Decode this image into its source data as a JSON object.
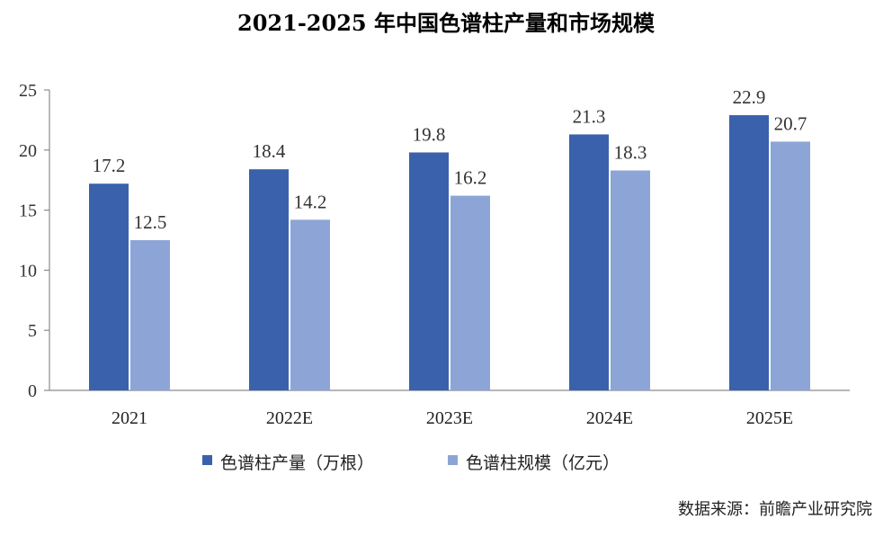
{
  "chart_data": {
    "type": "bar",
    "title": "2021-2025 年中国色谱柱产量和市场规模",
    "categories": [
      "2021",
      "2022E",
      "2023E",
      "2024E",
      "2025E"
    ],
    "series": [
      {
        "name": "色谱柱产量（万根）",
        "values": [
          17.2,
          18.4,
          19.8,
          21.3,
          22.9
        ],
        "color": "#3a61ab"
      },
      {
        "name": "色谱柱规模（亿元）",
        "values": [
          12.5,
          14.2,
          16.2,
          18.3,
          20.7
        ],
        "color": "#8da5d6"
      }
    ],
    "data_labels": [
      [
        "17.2",
        "18.4",
        "19.8",
        "21.3",
        "22.9"
      ],
      [
        "12.5",
        "14.2",
        "16.2",
        "18.3",
        "20.7"
      ]
    ],
    "yticks": [
      "0",
      "5",
      "10",
      "15",
      "20",
      "25"
    ],
    "ylim": [
      0,
      25
    ],
    "xlabel": "",
    "ylabel": "",
    "grid": false,
    "legend_position": "bottom"
  },
  "source": "数据来源：前瞻产业研究院"
}
